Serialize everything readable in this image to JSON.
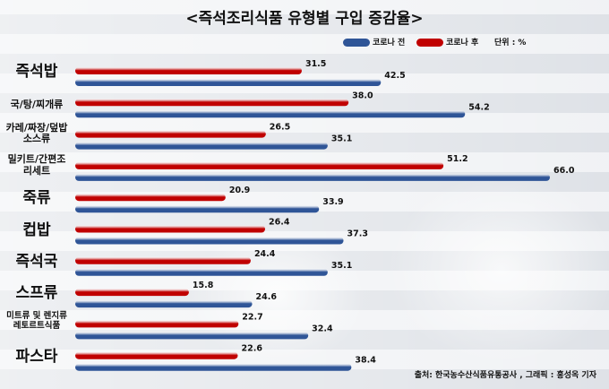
{
  "title": "<즉석조리식품 유형별 구입 증감율>",
  "legend": {
    "before": "코로나 전",
    "after": "코로나 후",
    "unit": "단위 : %"
  },
  "source": "출처: 한국농수산식품유통공사 , 그래픽 : 홍성옥 기자",
  "colors": {
    "before": "#2f5597",
    "after": "#c00000"
  },
  "chart_data": {
    "type": "bar",
    "orientation": "horizontal",
    "categories": [
      "즉석밥",
      "국/탕/찌개류",
      "카레/짜장/덮밥 소스류",
      "밀키트/간편조 리세트",
      "죽류",
      "컵밥",
      "즉석국",
      "스프류",
      "미트류 및 렌지류 레토르트식품",
      "파스타"
    ],
    "series": [
      {
        "name": "코로나 후",
        "values": [
          31.5,
          38.0,
          26.5,
          51.2,
          20.9,
          26.4,
          24.4,
          15.8,
          22.7,
          22.6
        ]
      },
      {
        "name": "코로나 전",
        "values": [
          42.5,
          54.2,
          35.1,
          66.0,
          33.9,
          37.3,
          35.1,
          24.6,
          32.4,
          38.4
        ]
      }
    ],
    "value_labels": {
      "after": [
        "31.5",
        "38.0",
        "26.5",
        "51.2",
        "20.9",
        "26.4",
        "24.4",
        "15.8",
        "22.7",
        "22.6"
      ],
      "before": [
        "42.5",
        "54.2",
        "35.1",
        "66.0",
        "33.9",
        "37.3",
        "35.1",
        "24.6",
        "32.4",
        "38.4"
      ]
    },
    "xlim": [
      0,
      66
    ],
    "grid": false,
    "legend_position": "top-right"
  }
}
